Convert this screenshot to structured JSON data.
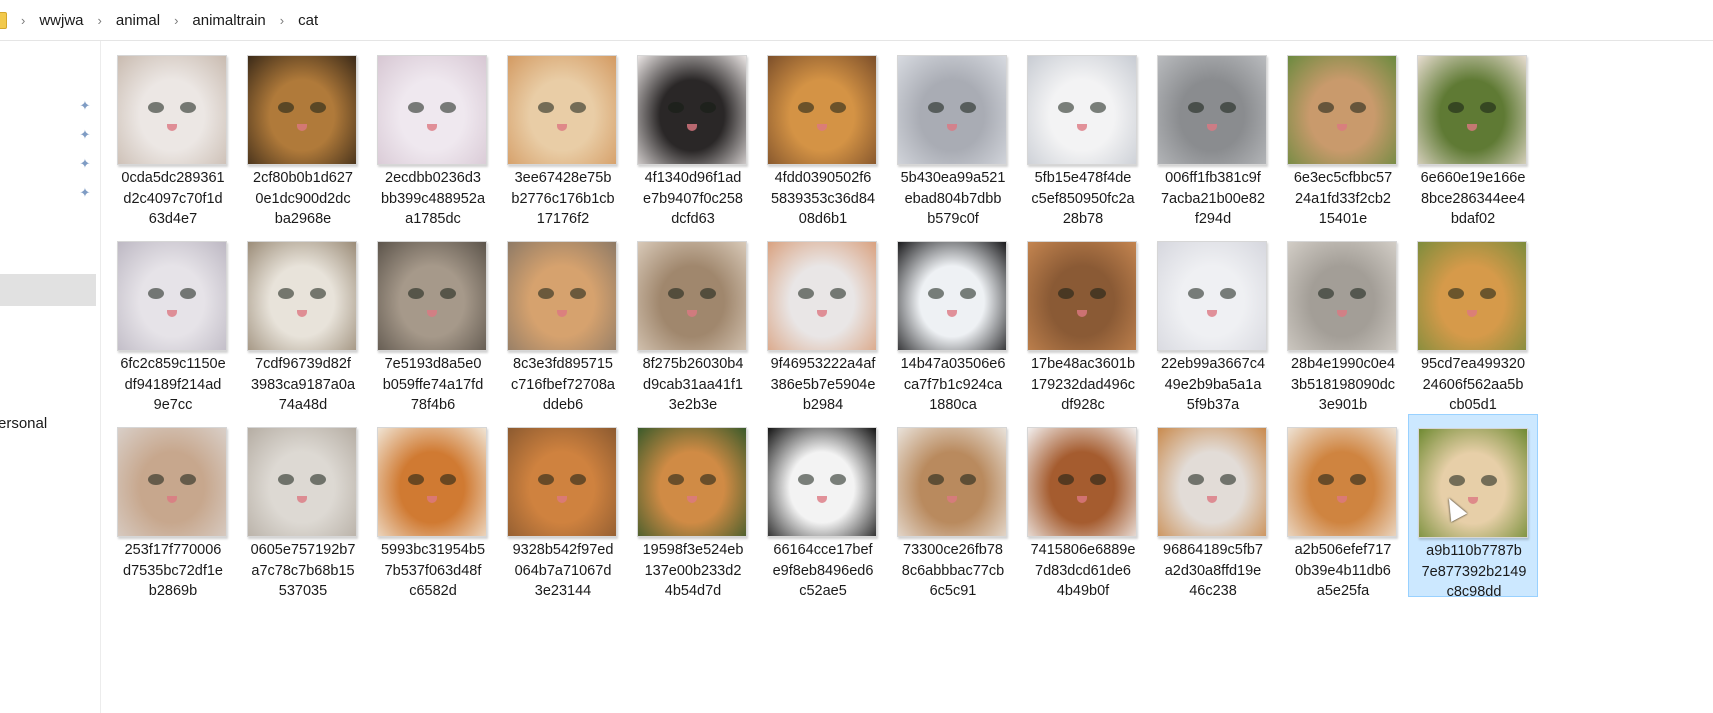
{
  "breadcrumb": {
    "items": [
      "wwjwa",
      "animal",
      "animaltrain",
      "cat"
    ],
    "separator": "›"
  },
  "sidebar": {
    "pin_count": 4,
    "label": "ersonal"
  },
  "files": [
    {
      "l1": "0cda5dc289361",
      "l2": "d2c4097c70f1d",
      "l3": "63d4e7",
      "c1": "#ece7e4",
      "c2": "#c9bbb0"
    },
    {
      "l1": "2cf80b0b1d627",
      "l2": "0e1dc900d2dc",
      "l3": "ba2968e",
      "c1": "#b07a3a",
      "c2": "#3b2a18"
    },
    {
      "l1": "2ecdbb0236d3",
      "l2": "bb399c488952a",
      "l3": "a1785dc",
      "c1": "#efe8ef",
      "c2": "#d7c7d3"
    },
    {
      "l1": "3ee67428e75b",
      "l2": "b2776c176b1cb",
      "l3": "17176f2",
      "c1": "#e9cda6",
      "c2": "#d39a62"
    },
    {
      "l1": "4f1340d96f1ad",
      "l2": "e7b9407f0c258",
      "l3": "dcfd63",
      "c1": "#2a2727",
      "c2": "#e9e4e3"
    },
    {
      "l1": "4fdd0390502f6",
      "l2": "5839353c36d84",
      "l3": "08d6b1",
      "c1": "#d49345",
      "c2": "#7c4f2a"
    },
    {
      "l1": "5b430ea99a521",
      "l2": "ebad804b7dbb",
      "l3": "b579c0f",
      "c1": "#a9acb4",
      "c2": "#d7dae0"
    },
    {
      "l1": "5fb15e478f4de",
      "l2": "c5ef850950fc2a",
      "l3": "28b78",
      "c1": "#f3f3f4",
      "c2": "#c8ccd3"
    },
    {
      "l1": "006ff1fb381c9f",
      "l2": "7acba21b00e82",
      "l3": "f294d",
      "c1": "#8a8c8f",
      "c2": "#b9bbbe"
    },
    {
      "l1": "6e3ec5cfbbc57",
      "l2": "24a1fd33f2cb2",
      "l3": "15401e",
      "c1": "#c99a6c",
      "c2": "#6b8a3f"
    },
    {
      "l1": "6e660e19e166e",
      "l2": "8bce286344ee4",
      "l3": "bdaf02",
      "c1": "#5f7a34",
      "c2": "#e7dcd0"
    },
    {
      "l1": "6fc2c859c1150e",
      "l2": "df94189f214ad",
      "l3": "9e7cc",
      "c1": "#e6e3e8",
      "c2": "#bdb8c3"
    },
    {
      "l1": "7cdf96739d82f",
      "l2": "3983ca9187a0a",
      "l3": "74a48d",
      "c1": "#e8e3da",
      "c2": "#9b8c78"
    },
    {
      "l1": "7e5193d8a5e0",
      "l2": "b059ffe74a17fd",
      "l3": "78f4b6",
      "c1": "#a6998a",
      "c2": "#5c544b"
    },
    {
      "l1": "8c3e3fd895715",
      "l2": "c716fbef72708a",
      "l3": "ddeb6",
      "c1": "#d6a26e",
      "c2": "#8e7a66"
    },
    {
      "l1": "8f275b26030b4",
      "l2": "d9cab31aa41f1",
      "l3": "3e2b3e",
      "c1": "#a0876d",
      "c2": "#d8c9b8"
    },
    {
      "l1": "9f46953222a4af",
      "l2": "386e5b7e5904e",
      "l3": "b2984",
      "c1": "#e9e6e6",
      "c2": "#d9a17f"
    },
    {
      "l1": "14b47a03506e6",
      "l2": "ca7f7b1c924ca",
      "l3": "1880ca",
      "c1": "#eef1f4",
      "c2": "#1a1a1c"
    },
    {
      "l1": "17be48ac3601b",
      "l2": "179232dad496c",
      "l3": "df928c",
      "c1": "#8a5a35",
      "c2": "#c48550"
    },
    {
      "l1": "22eb99a3667c4",
      "l2": "49e2b9ba5a1a",
      "l3": "5f9b37a",
      "c1": "#eff0f3",
      "c2": "#d6d7de"
    },
    {
      "l1": "28b4e1990c0e4",
      "l2": "3b518198090dc",
      "l3": "3e901b",
      "c1": "#a39e97",
      "c2": "#d2cdc6"
    },
    {
      "l1": "95cd7ea499320",
      "l2": "24606f562aa5b",
      "l3": "cb05d1",
      "c1": "#d69a4a",
      "c2": "#7d8c3c"
    },
    {
      "l1": "253f17f770006",
      "l2": "d7535bc72df1e",
      "l3": "b2869b",
      "c1": "#c7a78d",
      "c2": "#d9cfc8"
    },
    {
      "l1": "0605e757192b7",
      "l2": "a7c78c7b68b15",
      "l3": "537035",
      "c1": "#ddd9d3",
      "c2": "#b5ada3"
    },
    {
      "l1": "5993bc31954b5",
      "l2": "7b537f063d48f",
      "l3": "c6582d",
      "c1": "#d07a32",
      "c2": "#f0e4d4"
    },
    {
      "l1": "9328b542f97ed",
      "l2": "064b7a71067d",
      "l3": "3e23144",
      "c1": "#cf823f",
      "c2": "#8c5a30"
    },
    {
      "l1": "19598f3e524eb",
      "l2": "137e00b233d2",
      "l3": "4b54d7d",
      "c1": "#d08b45",
      "c2": "#3a5a2a"
    },
    {
      "l1": "66164cce17bef",
      "l2": "e9f8eb8496ed6",
      "l3": "c52ae5",
      "c1": "#f3f3f3",
      "c2": "#141414"
    },
    {
      "l1": "73300ce26fb78",
      "l2": "8c6abbbac77cb",
      "l3": "6c5c91",
      "c1": "#b98a5e",
      "c2": "#e9e2da"
    },
    {
      "l1": "7415806e6889e",
      "l2": "7d83dcd61de6",
      "l3": "4b49b0f",
      "c1": "#a55c2f",
      "c2": "#f2efee"
    },
    {
      "l1": "96864189c5fb7",
      "l2": "a2d30a8ffd19e",
      "l3": "46c238",
      "c1": "#e2dcd7",
      "c2": "#c98a4d"
    },
    {
      "l1": "a2b506efef717",
      "l2": "0b39e4b11db6",
      "l3": "a5e25fa",
      "c1": "#cf8440",
      "c2": "#eee2d4"
    },
    {
      "l1": "a9b110b7787b",
      "l2": "7e877392b2149",
      "l3": "c8c98dd",
      "c1": "#e7cfa8",
      "c2": "#6f8a32",
      "selected": true
    }
  ]
}
